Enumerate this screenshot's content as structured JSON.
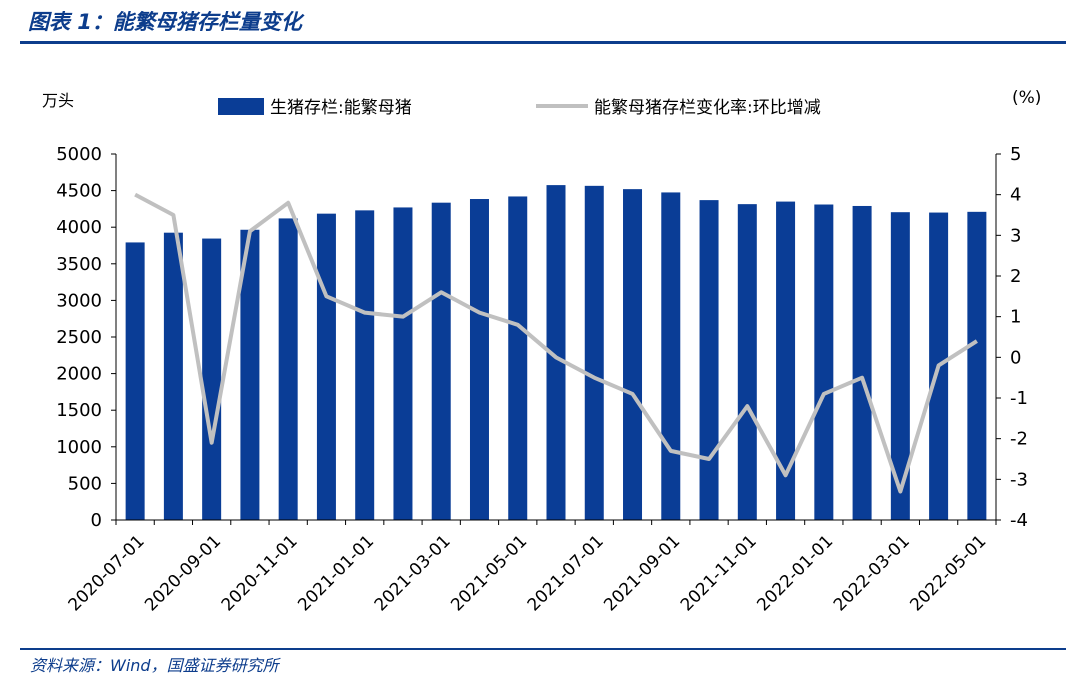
{
  "figure_title": "图表 1：能繁母猪存栏量变化",
  "source_note": "资料来源：Wind，国盛证券研究所",
  "colors": {
    "bar": "#0a3d96",
    "line": "#c0c0c0",
    "accent": "#0d3d8c"
  },
  "chart_data": {
    "type": "bar",
    "title": "",
    "categories": [
      "2020-07-01",
      "2020-08-01",
      "2020-09-01",
      "2020-10-01",
      "2020-11-01",
      "2020-12-01",
      "2021-01-01",
      "2021-02-01",
      "2021-03-01",
      "2021-04-01",
      "2021-05-01",
      "2021-06-01",
      "2021-07-01",
      "2021-08-01",
      "2021-09-01",
      "2021-10-01",
      "2021-11-01",
      "2021-12-01",
      "2022-01-01",
      "2022-02-01",
      "2022-03-01",
      "2022-04-01",
      "2022-05-01"
    ],
    "x_tick_labels": [
      "2020-07-01",
      "2020-09-01",
      "2020-11-01",
      "2021-01-01",
      "2021-03-01",
      "2021-05-01",
      "2021-07-01",
      "2021-09-01",
      "2021-11-01",
      "2022-01-01",
      "2022-03-01",
      "2022-05-01"
    ],
    "series": [
      {
        "name": "生猪存栏:能繁母猪",
        "type": "bar",
        "axis": "left",
        "values": [
          3792,
          3925,
          3845,
          3965,
          4120,
          4185,
          4230,
          4270,
          4335,
          4385,
          4420,
          4575,
          4565,
          4520,
          4475,
          4370,
          4315,
          4350,
          4310,
          4290,
          4205,
          4200,
          4210
        ]
      },
      {
        "name": "能繁母猪存栏变化率:环比增减",
        "type": "line",
        "axis": "right",
        "values": [
          4.0,
          3.5,
          -2.1,
          3.1,
          3.8,
          1.5,
          1.1,
          1.0,
          1.6,
          1.1,
          0.8,
          0.0,
          -0.5,
          -0.9,
          -2.3,
          -2.5,
          -1.2,
          -2.9,
          -0.9,
          -0.5,
          -3.3,
          -0.2,
          0.4
        ]
      }
    ],
    "y_left": {
      "label": "万头",
      "ylim": [
        0,
        5000
      ],
      "ticks": [
        0,
        500,
        1000,
        1500,
        2000,
        2500,
        3000,
        3500,
        4000,
        4500,
        5000
      ]
    },
    "y_right": {
      "label": "(%)",
      "ylim": [
        -4,
        5
      ],
      "ticks": [
        -4,
        -3,
        -2,
        -1,
        0,
        1,
        2,
        3,
        4,
        5
      ]
    },
    "grid": false,
    "legend": "top"
  }
}
